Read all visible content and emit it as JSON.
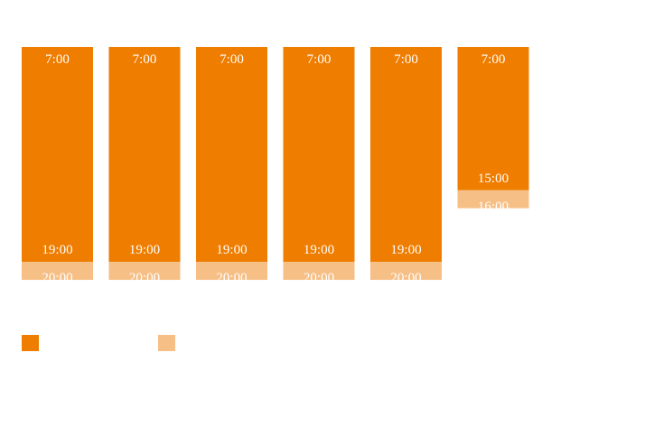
{
  "colors": {
    "main": "#ef7d00",
    "extended": "#f6bf86",
    "background": "#ffffff",
    "label": "#ffffff"
  },
  "chart_data": {
    "type": "bar",
    "orientation": "vertical-range",
    "categories": [
      "",
      "",
      "",
      "",
      "",
      ""
    ],
    "series": [
      {
        "color_key": "main",
        "ranges": [
          {
            "start": "7:00",
            "end": "19:00"
          },
          {
            "start": "7:00",
            "end": "19:00"
          },
          {
            "start": "7:00",
            "end": "19:00"
          },
          {
            "start": "7:00",
            "end": "19:00"
          },
          {
            "start": "7:00",
            "end": "19:00"
          },
          {
            "start": "7:00",
            "end": "15:00"
          }
        ]
      },
      {
        "color_key": "extended",
        "ranges": [
          {
            "start": "19:00",
            "end": "20:00"
          },
          {
            "start": "19:00",
            "end": "20:00"
          },
          {
            "start": "19:00",
            "end": "20:00"
          },
          {
            "start": "19:00",
            "end": "20:00"
          },
          {
            "start": "19:00",
            "end": "20:00"
          },
          {
            "start": "15:00",
            "end": "16:00"
          }
        ]
      }
    ],
    "hours": {
      "start": [
        7,
        7,
        7,
        7,
        7,
        7
      ],
      "main_end": [
        19,
        19,
        19,
        19,
        19,
        15
      ],
      "extended_end": [
        20,
        20,
        20,
        20,
        20,
        16
      ]
    },
    "labels": {
      "start": [
        "7:00",
        "7:00",
        "7:00",
        "7:00",
        "7:00",
        "7:00"
      ],
      "main_end": [
        "19:00",
        "19:00",
        "19:00",
        "19:00",
        "19:00",
        "15:00"
      ],
      "extended_end": [
        "20:00",
        "20:00",
        "20:00",
        "20:00",
        "20:00",
        "16:00"
      ]
    },
    "ylim": [
      7,
      20
    ],
    "grid": false,
    "legend": {
      "placement": "bottom-left",
      "entries": [
        {
          "color_key": "main",
          "label": ""
        },
        {
          "color_key": "extended",
          "label": ""
        }
      ]
    }
  }
}
